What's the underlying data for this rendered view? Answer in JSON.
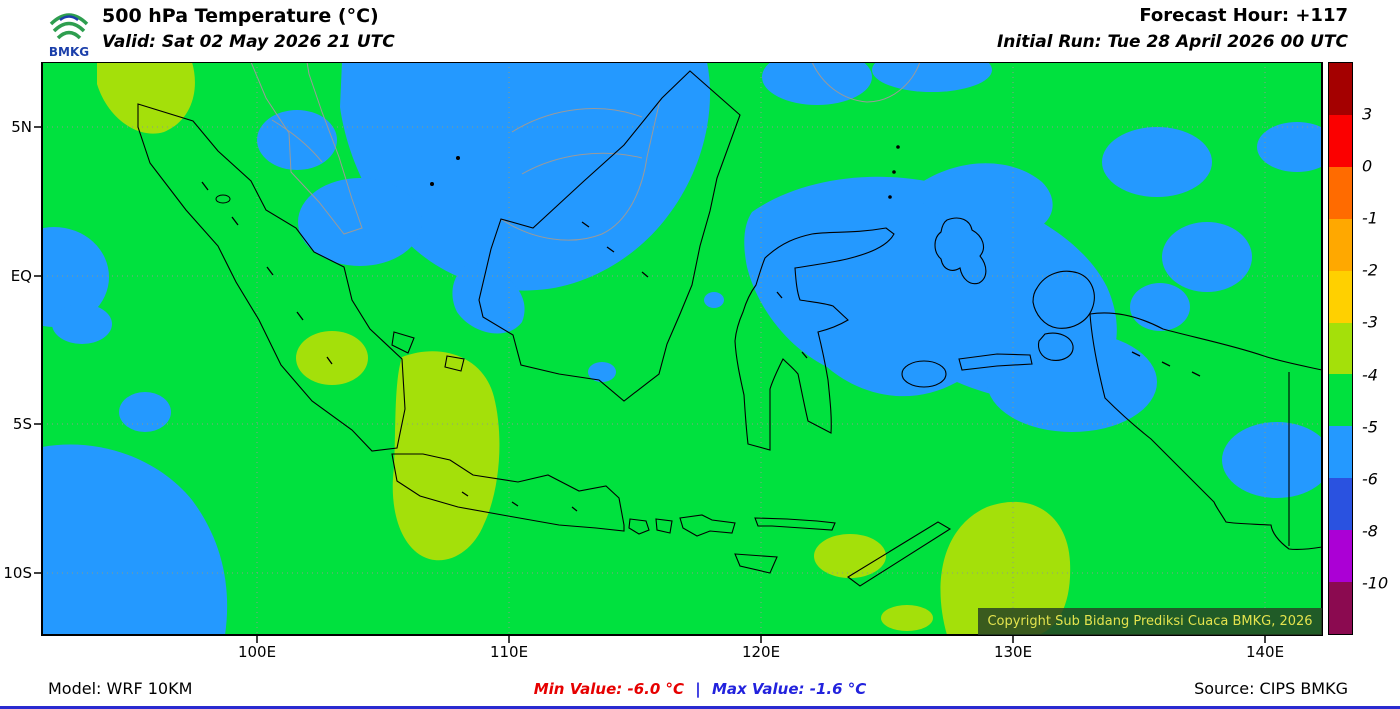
{
  "header": {
    "logo_text": "BMKG",
    "title": "500 hPa Temperature (°C)",
    "valid": "Valid: Sat 02 May 2026 21 UTC",
    "forecast_hour": "Forecast Hour: +117",
    "initial_run": "Initial Run: Tue 28 April 2026 00 UTC"
  },
  "map": {
    "lat_labels": [
      "5N",
      "EQ",
      "5S",
      "10S"
    ],
    "lon_labels": [
      "100E",
      "110E",
      "120E",
      "130E",
      "140E"
    ],
    "copyright": "Copyright Sub Bidang Prediksi Cuaca BMKG, 2026",
    "fill_colors": {
      "green": "#00e13e",
      "blue": "#2499ff",
      "yellow_green": "#a4e00a"
    }
  },
  "colorbar": {
    "labels": [
      "3",
      "0",
      "-1",
      "-2",
      "-3",
      "-4",
      "-5",
      "-6",
      "-8",
      "-10"
    ],
    "colors": [
      "#a40000",
      "#fb0000",
      "#ff6b00",
      "#ffa800",
      "#ffd000",
      "#a4e00a",
      "#00e13e",
      "#2499ff",
      "#2a52e0",
      "#ab00d5",
      "#8b0a50"
    ]
  },
  "footer": {
    "model": "Model: WRF 10KM",
    "min_label": "Min Value:",
    "min_value": "-6.0 °C",
    "separator": "|",
    "max_label": "Max Value:",
    "max_value": "-1.6 °C",
    "min_color": "#e60000",
    "max_color": "#2222dd",
    "source": "Source: CIPS BMKG"
  }
}
